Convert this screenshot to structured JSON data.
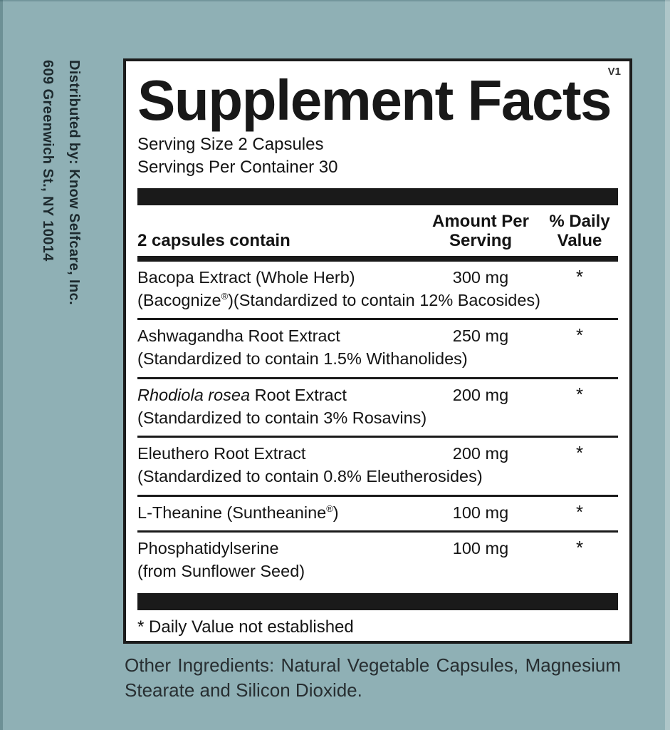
{
  "colors": {
    "background": "#8fb0b5",
    "panel_background": "#ffffff",
    "panel_border": "#1c1c1c",
    "bar": "#1a1a1a",
    "text": "#141414"
  },
  "distributor": {
    "line1": "Distributed by: Know Selfcare, Inc.",
    "line2": "609 Greenwich St., NY 10014"
  },
  "label": {
    "version": "V1",
    "title": "Supplement Facts",
    "serving_size": "Serving Size 2 Capsules",
    "servings_per_container": "Servings Per Container 30",
    "columns": {
      "ingredient": "2 capsules contain",
      "amount_line1": "Amount Per",
      "amount_line2": "Serving",
      "dv_line1": "% Daily",
      "dv_line2": "Value"
    },
    "rows": [
      {
        "name_parts": [
          {
            "t": "Bacopa Extract (Whole Herb)"
          }
        ],
        "sub_parts": [
          {
            "t": "(Bacognize"
          },
          {
            "t": "®",
            "sup": true
          },
          {
            "t": ")(Standardized to contain 12% Bacosides)"
          }
        ],
        "amount": "300 mg",
        "daily_value": "*"
      },
      {
        "name_parts": [
          {
            "t": "Ashwagandha Root Extract"
          }
        ],
        "sub_parts": [
          {
            "t": "(Standardized to contain 1.5% Withanolides)"
          }
        ],
        "amount": "250 mg",
        "daily_value": "*"
      },
      {
        "name_parts": [
          {
            "t": "Rhodiola rosea",
            "italic": true
          },
          {
            "t": " Root Extract"
          }
        ],
        "sub_parts": [
          {
            "t": "(Standardized to contain 3% Rosavins)"
          }
        ],
        "amount": "200 mg",
        "daily_value": "*"
      },
      {
        "name_parts": [
          {
            "t": "Eleuthero Root Extract"
          }
        ],
        "sub_parts": [
          {
            "t": "(Standardized to contain 0.8% Eleutherosides)"
          }
        ],
        "amount": "200 mg",
        "daily_value": "*"
      },
      {
        "name_parts": [
          {
            "t": "L-Theanine (Suntheanine"
          },
          {
            "t": "®",
            "sup": true
          },
          {
            "t": ")"
          }
        ],
        "sub_parts": [],
        "amount": "100 mg",
        "daily_value": "*"
      },
      {
        "name_parts": [
          {
            "t": "Phosphatidylserine"
          }
        ],
        "sub_parts": [
          {
            "t": "(from Sunflower Seed)"
          }
        ],
        "amount": "100 mg",
        "daily_value": "*"
      }
    ],
    "footnote": "* Daily Value not established"
  },
  "other_ingredients": "Other Ingredients: Natural Vegetable Capsules, Magnesium Stearate and Silicon Dioxide."
}
